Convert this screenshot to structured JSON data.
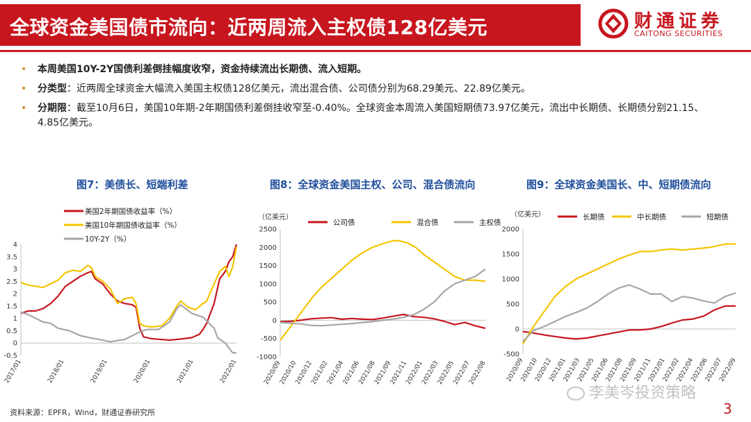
{
  "header": {
    "title": "全球资金美国债市流向：近两周流入主权债128亿美元",
    "logo_cn": "财通证券",
    "logo_en": "CAITONG SECURITIES"
  },
  "bullets": [
    {
      "lead": "",
      "text": "本周美国10Y-2Y国债利差倒挂幅度收窄，资金持续流出长期债、流入短期。",
      "bold": true
    },
    {
      "lead": "分类型",
      "text": "：近两周全球资金大幅流入美国主权债128亿美元，流出混合债、公司债分别为68.29美元、22.89亿美元。",
      "bold": false
    },
    {
      "lead": "分期限",
      "text": "：截至10月6日，美国10年期-2年期国债利差倒挂收窄至-0.40%。全球资金本周流入美国短期债73.97亿美元，流出中长期债、长期债分别21.15、4.85亿美元。",
      "bold": false
    }
  ],
  "footer": {
    "source": "资料来源：EPFR，Wind，财通证券研究所",
    "page": "3",
    "watermark": "李美岑投资策略"
  },
  "colors": {
    "red": "#c8161e",
    "yellow": "#f5c400",
    "gray": "#a6a6a6",
    "blue": "#1f4e9b"
  },
  "chart_data": [
    {
      "id": "fig7",
      "type": "line",
      "title": "图7：美债长、短端利差",
      "unit": "",
      "ylim": [
        -0.5,
        4
      ],
      "yticks": [
        "-0.5",
        "0",
        "0.5",
        "1",
        "1.5",
        "2",
        "2.5",
        "3",
        "3.5",
        "4"
      ],
      "xticks": [
        "2017/01",
        "2018/01",
        "2019/01",
        "2020/01",
        "2021/01",
        "2022/01"
      ],
      "xrange": [
        2017.0,
        2022.8
      ],
      "series": [
        {
          "name": "美国2年期国债收益率（%）",
          "color": "red",
          "x": [
            2017.0,
            2017.2,
            2017.4,
            2017.6,
            2017.8,
            2018.0,
            2018.2,
            2018.4,
            2018.6,
            2018.8,
            2018.9,
            2019.0,
            2019.2,
            2019.4,
            2019.6,
            2019.8,
            2020.0,
            2020.1,
            2020.2,
            2020.3,
            2020.5,
            2020.8,
            2021.0,
            2021.3,
            2021.6,
            2021.8,
            2021.9,
            2022.0,
            2022.2,
            2022.35,
            2022.5,
            2022.6,
            2022.7,
            2022.8
          ],
          "y": [
            1.2,
            1.3,
            1.3,
            1.4,
            1.6,
            1.9,
            2.3,
            2.5,
            2.7,
            2.85,
            2.9,
            2.6,
            2.4,
            2.0,
            1.7,
            1.6,
            1.55,
            1.45,
            0.6,
            0.25,
            0.18,
            0.14,
            0.12,
            0.16,
            0.22,
            0.35,
            0.55,
            0.8,
            1.6,
            2.6,
            2.9,
            3.3,
            3.5,
            4.0
          ]
        },
        {
          "name": "美国10年期国债收益率（%）",
          "color": "yellow",
          "x": [
            2017.0,
            2017.2,
            2017.4,
            2017.6,
            2017.8,
            2018.0,
            2018.2,
            2018.4,
            2018.6,
            2018.8,
            2018.9,
            2019.0,
            2019.2,
            2019.4,
            2019.6,
            2019.8,
            2020.0,
            2020.1,
            2020.2,
            2020.3,
            2020.5,
            2020.8,
            2021.0,
            2021.2,
            2021.3,
            2021.5,
            2021.7,
            2021.9,
            2022.0,
            2022.2,
            2022.35,
            2022.5,
            2022.6,
            2022.7,
            2022.8
          ],
          "y": [
            2.45,
            2.35,
            2.3,
            2.25,
            2.4,
            2.55,
            2.85,
            2.95,
            2.9,
            3.15,
            3.05,
            2.7,
            2.5,
            2.2,
            1.6,
            1.8,
            1.85,
            1.6,
            0.8,
            0.7,
            0.65,
            0.7,
            1.0,
            1.5,
            1.7,
            1.45,
            1.35,
            1.6,
            1.7,
            2.4,
            2.9,
            3.1,
            2.7,
            3.1,
            3.9
          ]
        },
        {
          "name": "10Y-2Y（%）",
          "color": "gray",
          "x": [
            2017.0,
            2017.2,
            2017.4,
            2017.6,
            2017.8,
            2018.0,
            2018.3,
            2018.6,
            2018.9,
            2019.1,
            2019.4,
            2019.6,
            2019.8,
            2020.0,
            2020.2,
            2020.4,
            2020.7,
            2021.0,
            2021.2,
            2021.3,
            2021.6,
            2021.9,
            2022.0,
            2022.2,
            2022.3,
            2022.5,
            2022.6,
            2022.7,
            2022.8
          ],
          "y": [
            1.25,
            1.15,
            1.0,
            0.85,
            0.8,
            0.6,
            0.5,
            0.3,
            0.2,
            0.15,
            0.05,
            0.1,
            0.15,
            0.3,
            0.45,
            0.55,
            0.55,
            0.85,
            1.4,
            1.55,
            1.2,
            1.05,
            0.9,
            0.6,
            0.2,
            0.0,
            -0.2,
            -0.4,
            -0.4
          ]
        }
      ]
    },
    {
      "id": "fig8",
      "type": "line",
      "title": "图8：全球资金美国主权、公司、混合债流向",
      "unit": "（亿美元）",
      "ylim": [
        -1000,
        2500
      ],
      "yticks": [
        "-1000",
        "-500",
        "0",
        "500",
        "1000",
        "1500",
        "2000",
        "2500"
      ],
      "xticks": [
        "2020/09",
        "2020/10",
        "2020/12",
        "2021/02",
        "2021/04",
        "2021/06",
        "2021/08",
        "2021/09",
        "2021/11",
        "2022/01",
        "2022/03",
        "2022/05",
        "2022/07",
        "2022/08"
      ],
      "xrange": [
        0,
        100
      ],
      "series": [
        {
          "name": "公司债",
          "color": "red",
          "x": [
            0,
            5,
            10,
            15,
            20,
            25,
            30,
            35,
            40,
            45,
            50,
            55,
            60,
            65,
            70,
            75,
            80,
            85,
            90,
            95,
            100
          ],
          "y": [
            -40,
            -30,
            0,
            40,
            60,
            70,
            30,
            50,
            30,
            20,
            60,
            110,
            160,
            100,
            80,
            40,
            -30,
            -120,
            -60,
            -150,
            -220
          ]
        },
        {
          "name": "混合债",
          "color": "yellow",
          "x": [
            0,
            4,
            8,
            12,
            16,
            20,
            25,
            30,
            35,
            40,
            45,
            50,
            55,
            58,
            62,
            66,
            70,
            75,
            80,
            85,
            90,
            95,
            100
          ],
          "y": [
            -550,
            -250,
            50,
            350,
            650,
            900,
            1150,
            1400,
            1650,
            1850,
            2000,
            2100,
            2180,
            2180,
            2120,
            2000,
            1800,
            1600,
            1400,
            1200,
            1100,
            1100,
            1070
          ]
        },
        {
          "name": "主权债",
          "color": "gray",
          "x": [
            0,
            5,
            10,
            15,
            20,
            25,
            30,
            35,
            40,
            45,
            50,
            55,
            60,
            65,
            70,
            75,
            80,
            85,
            90,
            95,
            100
          ],
          "y": [
            -60,
            -80,
            -100,
            -140,
            -150,
            -130,
            -110,
            -90,
            -60,
            -40,
            0,
            30,
            80,
            150,
            300,
            500,
            800,
            1000,
            1100,
            1200,
            1400
          ]
        }
      ]
    },
    {
      "id": "fig9",
      "type": "line",
      "title": "图9：全球资金美国长、中、短期债流向",
      "unit": "（亿美元）",
      "ylim": [
        -500,
        2000
      ],
      "yticks": [
        "-500",
        "0",
        "500",
        "1000",
        "1500",
        "2000"
      ],
      "xticks": [
        "2020/09",
        "2020/10",
        "2020/12",
        "2021/01",
        "2021/03",
        "2021/05",
        "2021/06",
        "2021/08",
        "2021/09",
        "2021/11",
        "2022/01",
        "2022/02",
        "2022/04",
        "2022/06",
        "2022/07",
        "2022/09"
      ],
      "xrange": [
        0,
        100
      ],
      "series": [
        {
          "name": "长期债",
          "color": "red",
          "x": [
            0,
            5,
            10,
            15,
            20,
            25,
            30,
            35,
            40,
            45,
            50,
            55,
            60,
            65,
            70,
            75,
            80,
            85,
            90,
            95,
            100
          ],
          "y": [
            -50,
            -80,
            -120,
            -150,
            -180,
            -200,
            -180,
            -140,
            -100,
            -60,
            -20,
            -20,
            0,
            50,
            120,
            180,
            200,
            260,
            380,
            460,
            460
          ]
        },
        {
          "name": "中长期债",
          "color": "yellow",
          "x": [
            0,
            5,
            10,
            15,
            20,
            25,
            30,
            35,
            40,
            45,
            50,
            55,
            60,
            65,
            70,
            75,
            80,
            85,
            90,
            95,
            100
          ],
          "y": [
            -300,
            50,
            350,
            650,
            850,
            1000,
            1100,
            1200,
            1300,
            1400,
            1480,
            1550,
            1550,
            1580,
            1600,
            1580,
            1600,
            1620,
            1650,
            1700,
            1700
          ]
        },
        {
          "name": "短期债",
          "color": "gray",
          "x": [
            0,
            5,
            10,
            15,
            20,
            25,
            30,
            35,
            40,
            45,
            50,
            55,
            60,
            65,
            70,
            75,
            80,
            85,
            90,
            95,
            100
          ],
          "y": [
            -250,
            -30,
            50,
            150,
            250,
            330,
            420,
            550,
            700,
            820,
            880,
            800,
            700,
            700,
            550,
            650,
            620,
            560,
            520,
            650,
            720
          ]
        }
      ]
    }
  ]
}
